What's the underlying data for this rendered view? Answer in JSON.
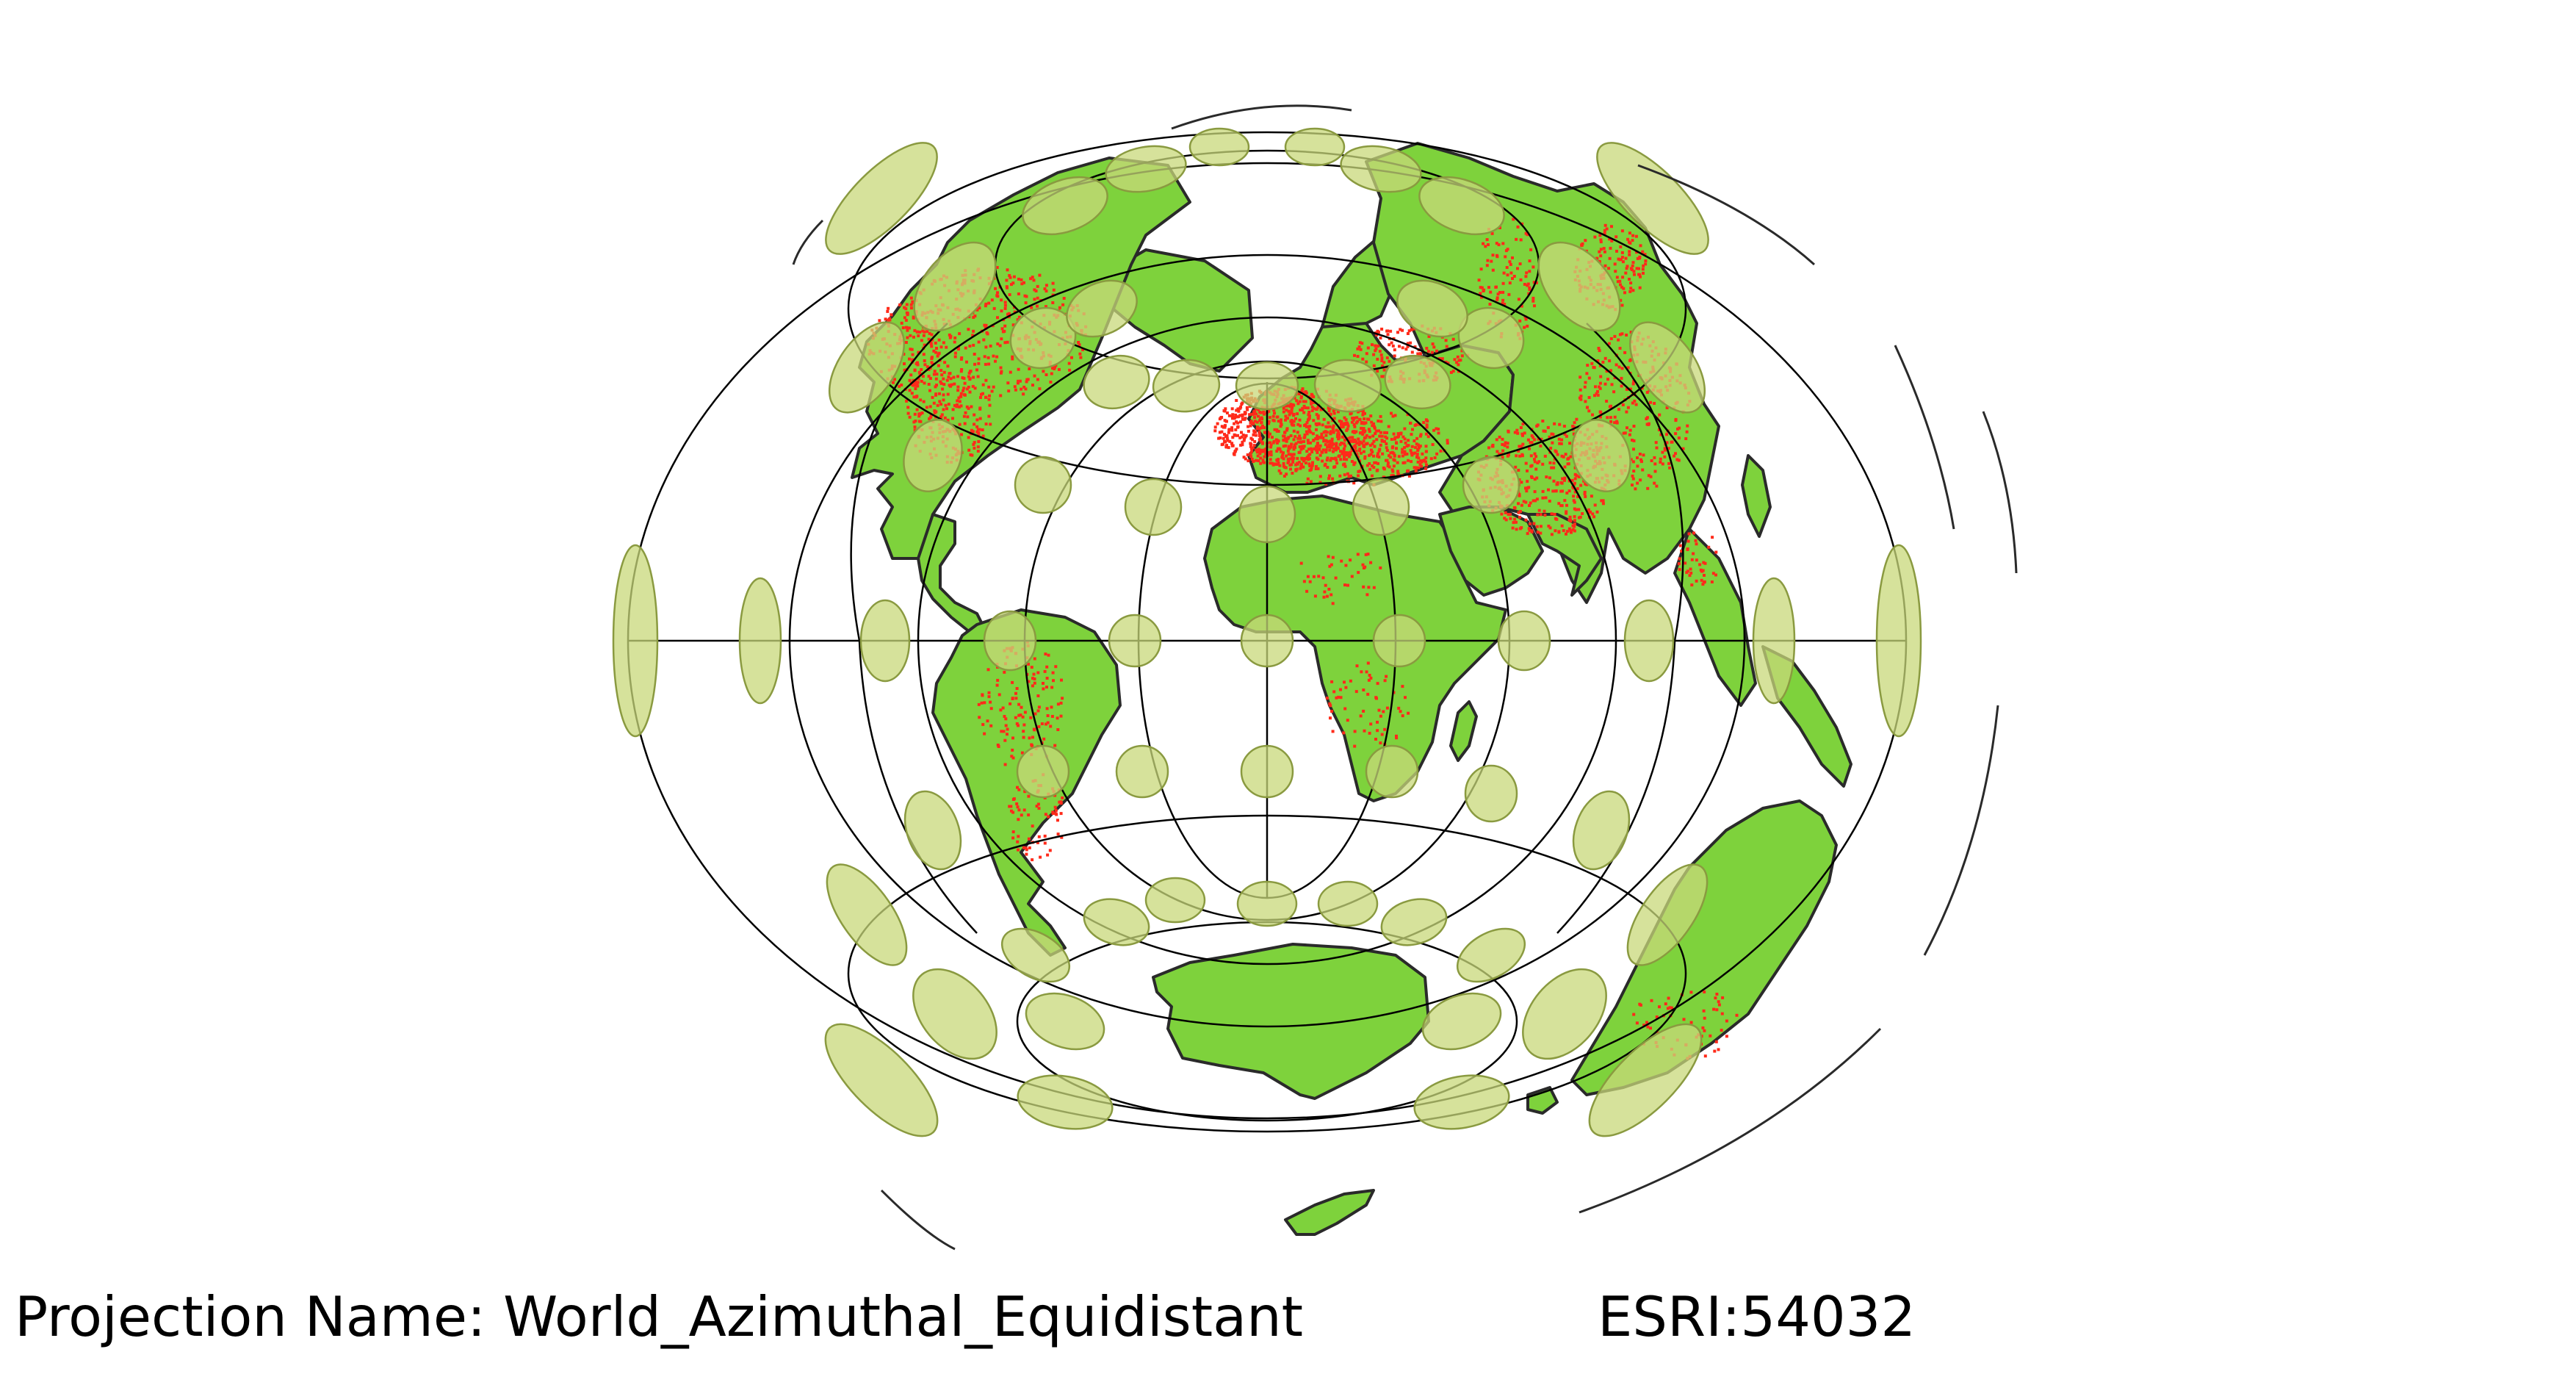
{
  "caption": {
    "prefix": "Projection Name: ",
    "name": "World_Azimuthal_Equidistant",
    "code": "ESRI:54032"
  },
  "colors": {
    "background": "#ffffff",
    "land": "#7ed23c",
    "coastline": "#2a2a2a",
    "points": "#ff2a1a",
    "graticule": "#000000",
    "indicatrix_fill": "#c8d87a",
    "indicatrix_stroke": "#8a9a40"
  },
  "map": {
    "projection": "azimuthal equidistant",
    "graticule": true,
    "tissot_indicatrix": true,
    "point_layer": true
  }
}
